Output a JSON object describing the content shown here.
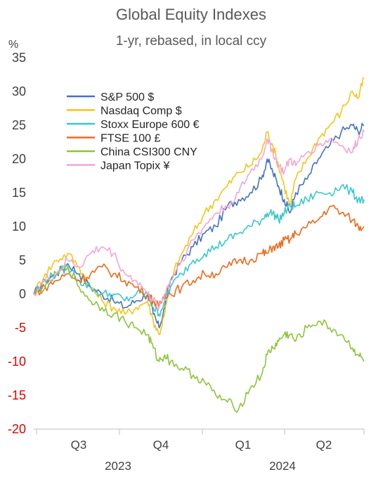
{
  "chart_data": {
    "type": "line",
    "title": "Global Equity Indexes",
    "subtitle": "1-yr, rebased, in local ccy",
    "y_unit": "%",
    "ylim": [
      -20,
      35
    ],
    "y_ticks": [
      35,
      30,
      25,
      20,
      15,
      10,
      5,
      0,
      -5,
      -10,
      -15,
      -20
    ],
    "negative_tick_color": "#e00000",
    "positive_tick_color": "#404040",
    "x_quarters": [
      "Q3",
      "Q4",
      "Q1",
      "Q2"
    ],
    "x_years": [
      "2023",
      "2024"
    ],
    "x_range": [
      "2023-06",
      "2024-06"
    ],
    "grid": false,
    "legend_position": "top-left",
    "series": [
      {
        "name": "S&P 500 $",
        "color": "#4472c4",
        "points": [
          [
            0,
            0
          ],
          [
            2,
            2
          ],
          [
            4,
            3
          ],
          [
            6,
            4.5
          ],
          [
            8,
            3
          ],
          [
            10,
            1
          ],
          [
            12,
            0
          ],
          [
            14,
            -1
          ],
          [
            16,
            -2
          ],
          [
            18,
            -1
          ],
          [
            20,
            0
          ],
          [
            21,
            -3
          ],
          [
            22,
            -5
          ],
          [
            23,
            -2
          ],
          [
            24,
            2
          ],
          [
            26,
            5
          ],
          [
            28,
            7
          ],
          [
            30,
            9
          ],
          [
            32,
            10
          ],
          [
            34,
            13
          ],
          [
            36,
            14
          ],
          [
            38,
            15
          ],
          [
            40,
            17
          ],
          [
            41,
            20
          ],
          [
            42,
            18
          ],
          [
            43,
            16
          ],
          [
            44,
            14
          ],
          [
            45,
            12
          ],
          [
            46,
            15
          ],
          [
            48,
            17
          ],
          [
            50,
            20
          ],
          [
            52,
            22
          ],
          [
            54,
            24
          ],
          [
            56,
            25
          ],
          [
            57,
            24
          ],
          [
            58,
            25
          ]
        ]
      },
      {
        "name": "Nasdaq Comp $",
        "color": "#f5c518",
        "points": [
          [
            0,
            0
          ],
          [
            2,
            3
          ],
          [
            4,
            5
          ],
          [
            6,
            6
          ],
          [
            8,
            4
          ],
          [
            10,
            1
          ],
          [
            12,
            -1
          ],
          [
            14,
            -2
          ],
          [
            16,
            -3
          ],
          [
            18,
            -2
          ],
          [
            20,
            -1
          ],
          [
            21,
            -4
          ],
          [
            22,
            -6
          ],
          [
            23,
            -3
          ],
          [
            24,
            2
          ],
          [
            26,
            6
          ],
          [
            28,
            9
          ],
          [
            30,
            12
          ],
          [
            32,
            14
          ],
          [
            34,
            16
          ],
          [
            36,
            18
          ],
          [
            38,
            19
          ],
          [
            40,
            21
          ],
          [
            41,
            24
          ],
          [
            42,
            22
          ],
          [
            43,
            19
          ],
          [
            44,
            16
          ],
          [
            45,
            13
          ],
          [
            46,
            17
          ],
          [
            48,
            20
          ],
          [
            50,
            23
          ],
          [
            52,
            25
          ],
          [
            54,
            27
          ],
          [
            56,
            30
          ],
          [
            57,
            29
          ],
          [
            58,
            32
          ]
        ]
      },
      {
        "name": "Stoxx Europe 600 €",
        "color": "#3cc8c8",
        "points": [
          [
            0,
            0
          ],
          [
            2,
            2
          ],
          [
            4,
            3
          ],
          [
            6,
            4
          ],
          [
            8,
            2
          ],
          [
            10,
            1
          ],
          [
            12,
            0
          ],
          [
            14,
            0
          ],
          [
            16,
            -1
          ],
          [
            18,
            0
          ],
          [
            20,
            0
          ],
          [
            21,
            -2
          ],
          [
            22,
            -3
          ],
          [
            23,
            -1
          ],
          [
            24,
            1
          ],
          [
            26,
            3
          ],
          [
            28,
            5
          ],
          [
            30,
            6
          ],
          [
            32,
            7
          ],
          [
            34,
            8
          ],
          [
            36,
            9
          ],
          [
            38,
            10
          ],
          [
            40,
            11
          ],
          [
            41,
            12
          ],
          [
            42,
            12
          ],
          [
            43,
            11
          ],
          [
            44,
            12
          ],
          [
            45,
            13
          ],
          [
            46,
            13
          ],
          [
            48,
            14
          ],
          [
            50,
            15
          ],
          [
            52,
            15
          ],
          [
            54,
            16
          ],
          [
            56,
            15
          ],
          [
            57,
            14
          ],
          [
            58,
            14
          ]
        ]
      },
      {
        "name": "FTSE 100 £",
        "color": "#ed6a1a",
        "points": [
          [
            0,
            0
          ],
          [
            2,
            1
          ],
          [
            4,
            2
          ],
          [
            6,
            3
          ],
          [
            8,
            2
          ],
          [
            10,
            3
          ],
          [
            12,
            4
          ],
          [
            14,
            3
          ],
          [
            16,
            2
          ],
          [
            18,
            1
          ],
          [
            20,
            0
          ],
          [
            21,
            -1
          ],
          [
            22,
            -2
          ],
          [
            23,
            0
          ],
          [
            24,
            0
          ],
          [
            26,
            1
          ],
          [
            28,
            2
          ],
          [
            30,
            3
          ],
          [
            32,
            3
          ],
          [
            34,
            4
          ],
          [
            36,
            5
          ],
          [
            38,
            5
          ],
          [
            40,
            6
          ],
          [
            41,
            6
          ],
          [
            42,
            7
          ],
          [
            43,
            7
          ],
          [
            44,
            8
          ],
          [
            45,
            8
          ],
          [
            46,
            9
          ],
          [
            48,
            10
          ],
          [
            50,
            11
          ],
          [
            52,
            13
          ],
          [
            54,
            12
          ],
          [
            56,
            11
          ],
          [
            57,
            10
          ],
          [
            58,
            10
          ]
        ]
      },
      {
        "name": "China CSI300 CNY",
        "color": "#8fc43c",
        "points": [
          [
            0,
            0
          ],
          [
            2,
            1
          ],
          [
            4,
            3
          ],
          [
            6,
            4
          ],
          [
            8,
            1
          ],
          [
            10,
            -1
          ],
          [
            12,
            -2
          ],
          [
            14,
            -3
          ],
          [
            16,
            -4
          ],
          [
            18,
            -5
          ],
          [
            20,
            -6
          ],
          [
            21,
            -8
          ],
          [
            22,
            -10
          ],
          [
            23,
            -9
          ],
          [
            24,
            -10
          ],
          [
            26,
            -11
          ],
          [
            28,
            -12
          ],
          [
            30,
            -13
          ],
          [
            32,
            -15
          ],
          [
            34,
            -16
          ],
          [
            36,
            -17
          ],
          [
            38,
            -14
          ],
          [
            40,
            -12
          ],
          [
            41,
            -9
          ],
          [
            42,
            -8
          ],
          [
            43,
            -7
          ],
          [
            44,
            -6
          ],
          [
            45,
            -6
          ],
          [
            46,
            -7
          ],
          [
            48,
            -5
          ],
          [
            50,
            -4
          ],
          [
            52,
            -5
          ],
          [
            54,
            -6
          ],
          [
            56,
            -8
          ],
          [
            57,
            -9
          ],
          [
            58,
            -10
          ]
        ]
      },
      {
        "name": "Japan Topix ¥",
        "color": "#f4a6d2",
        "points": [
          [
            0,
            0
          ],
          [
            2,
            2
          ],
          [
            4,
            3
          ],
          [
            6,
            5
          ],
          [
            8,
            4
          ],
          [
            10,
            6
          ],
          [
            12,
            7
          ],
          [
            14,
            6
          ],
          [
            16,
            3
          ],
          [
            18,
            2
          ],
          [
            20,
            0
          ],
          [
            21,
            -1
          ],
          [
            22,
            -2
          ],
          [
            23,
            0
          ],
          [
            24,
            2
          ],
          [
            26,
            5
          ],
          [
            28,
            8
          ],
          [
            30,
            10
          ],
          [
            32,
            12
          ],
          [
            34,
            13
          ],
          [
            36,
            15
          ],
          [
            38,
            18
          ],
          [
            40,
            20
          ],
          [
            41,
            23
          ],
          [
            42,
            21
          ],
          [
            43,
            19
          ],
          [
            44,
            18
          ],
          [
            45,
            20
          ],
          [
            46,
            19
          ],
          [
            48,
            21
          ],
          [
            50,
            22
          ],
          [
            52,
            23
          ],
          [
            54,
            22
          ],
          [
            56,
            21
          ],
          [
            57,
            23
          ],
          [
            58,
            24
          ]
        ]
      }
    ]
  }
}
